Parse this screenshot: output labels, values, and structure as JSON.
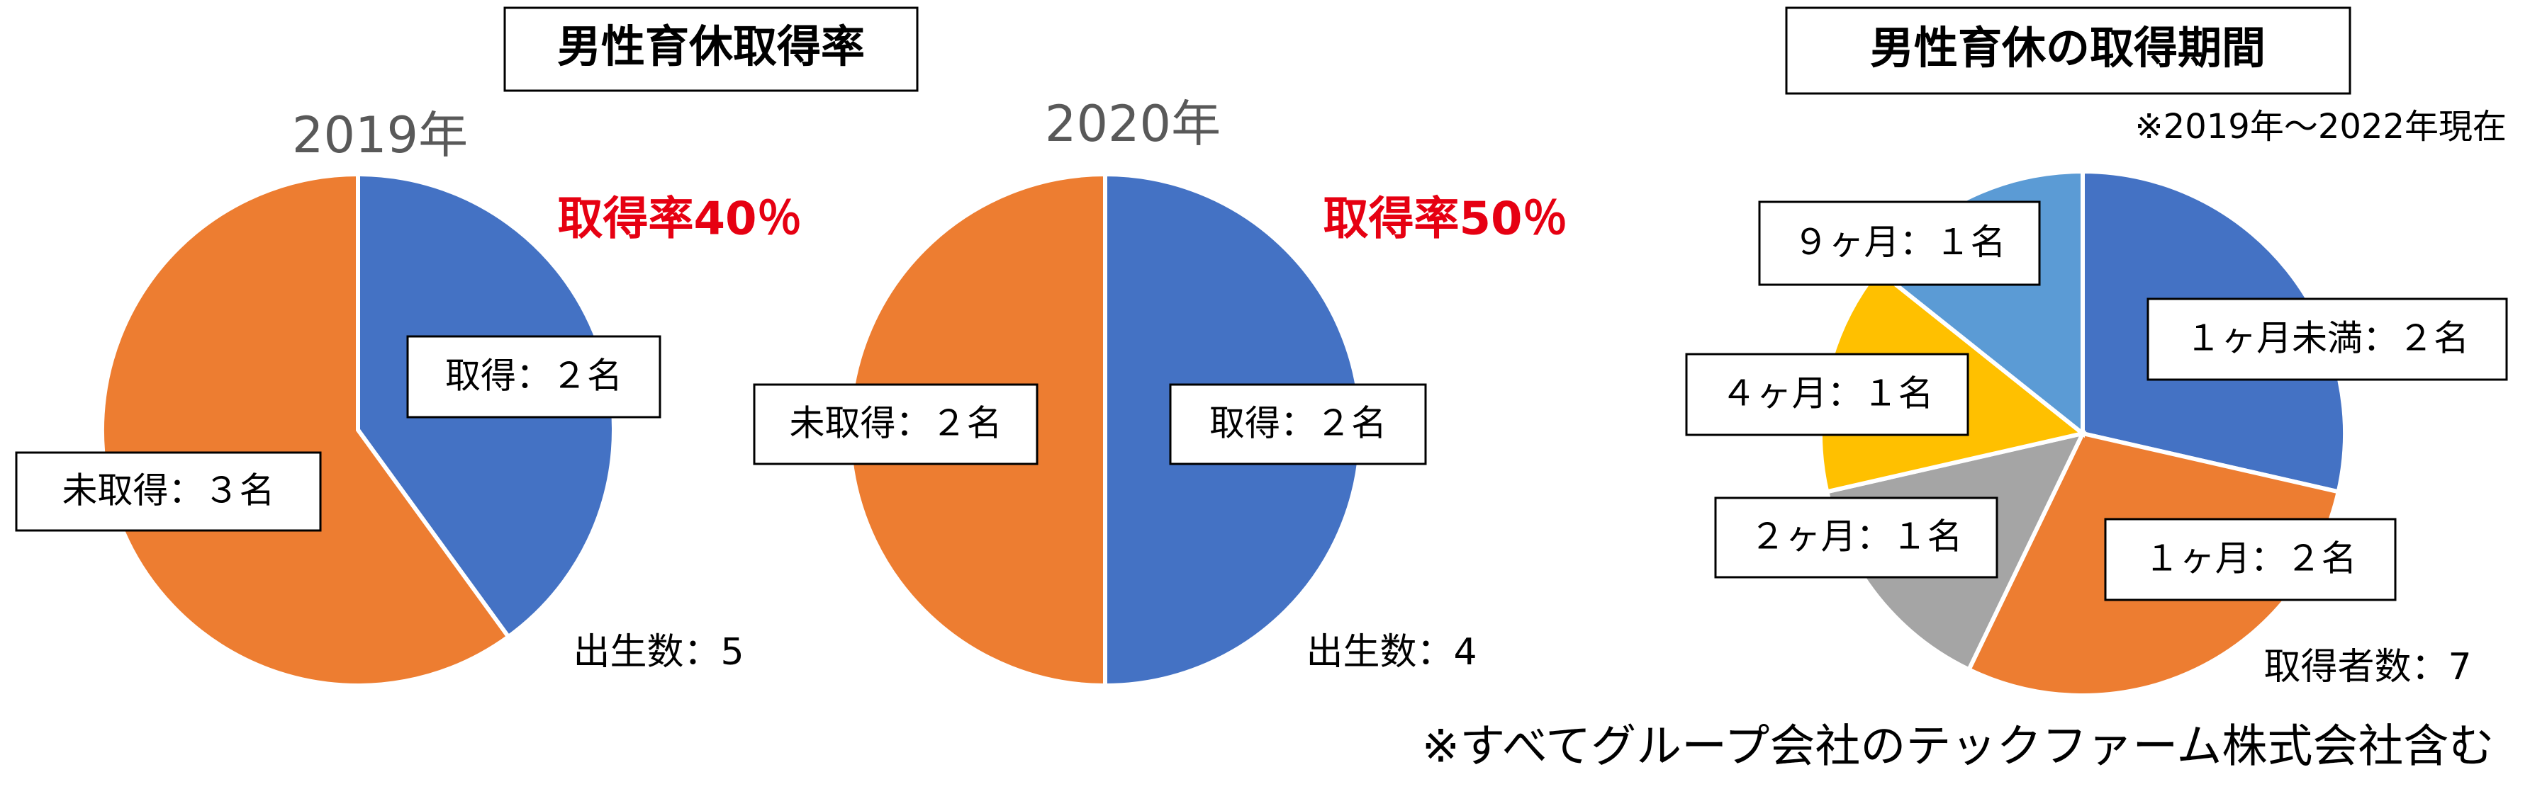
{
  "headings": [
    "男性育休取得率",
    "男性育休の取得期間"
  ],
  "period_note": "※2019年～2022年現在",
  "footnote": "※すべてグループ会社のテックファーム株式会社含む",
  "chart_data": [
    {
      "type": "pie",
      "title": "2019年",
      "values": [
        2,
        3
      ],
      "value_labels": [
        "取得：２名",
        "未取得：３名"
      ],
      "colors": [
        "#4472c4",
        "#ed7d31"
      ],
      "annotations": [
        "取得率40％",
        "出生数：5"
      ]
    },
    {
      "type": "pie",
      "title": "2020年",
      "values": [
        2,
        2
      ],
      "value_labels": [
        "取得：２名",
        "未取得：２名"
      ],
      "colors": [
        "#4472c4",
        "#ed7d31"
      ],
      "annotations": [
        "取得率50％",
        "出生数：4"
      ]
    },
    {
      "type": "pie",
      "values": [
        2,
        2,
        1,
        1,
        1
      ],
      "value_labels": [
        "１ヶ月未満：２名",
        "１ヶ月：２名",
        "２ヶ月：１名",
        "４ヶ月：１名",
        "９ヶ月：１名"
      ],
      "colors": [
        "#4472c4",
        "#ed7d31",
        "#a5a5a5",
        "#ffc000",
        "#5b9bd5"
      ],
      "annotations": [
        "取得者数：7"
      ]
    }
  ]
}
